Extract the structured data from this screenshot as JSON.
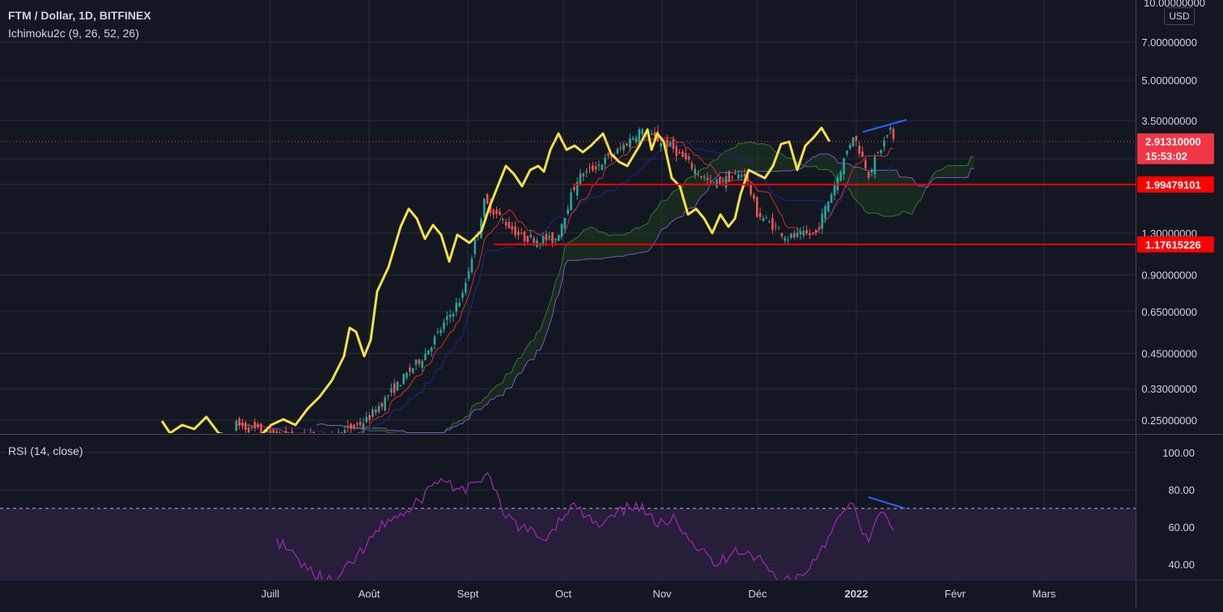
{
  "header": {
    "symbol": "FTM / Dollar, 1D, BITFINEX",
    "indicator": "Ichimoku2c (9, 26, 52, 26)",
    "currency": "USD"
  },
  "rsi_panel": {
    "label": "RSI (14, close)"
  },
  "price_tags": {
    "current_price": "2.91310000",
    "countdown": "15:53:02",
    "level_upper": "1.99479101",
    "level_lower": "1.17615226",
    "top_partial": "10.00000000"
  },
  "colors": {
    "background": "#131722",
    "grid": "#2a2e39",
    "up_candle": "#26a69a",
    "down_candle": "#ef5350",
    "overlay_line": "#f5e142",
    "level_line": "#ff0000",
    "tenkan": "#d32f2f",
    "kijun": "#1a237e",
    "cloud": "#1e3b1e",
    "span_b": "#7e57c2",
    "rsi_line": "#9c27b0",
    "rsi_band": "#2a1f3d",
    "divergence": "#2962ff",
    "price_tag_bg": "#f23645"
  },
  "chart_data": [
    {
      "type": "candlestick",
      "title": "FTM / Dollar, 1D, BITFINEX",
      "scale": "log",
      "ylim": [
        0.22,
        10
      ],
      "y_ticks": [
        "7.00000000",
        "5.00000000",
        "3.50000000",
        "1.30000000",
        "0.90000000",
        "0.65000000",
        "0.45000000",
        "0.33000000",
        "0.25000000"
      ],
      "x_ticks": [
        "Juill",
        "Août",
        "Sept",
        "Oct",
        "Nov",
        "Déc",
        "2022",
        "Févr",
        "Mars"
      ],
      "date_range": [
        "2021-06-20",
        "2022-01-18"
      ],
      "approx_close_path": [
        {
          "date": "2021-06-20",
          "close": 0.24
        },
        {
          "date": "2021-07-01",
          "close": 0.22
        },
        {
          "date": "2021-07-20",
          "close": 0.21
        },
        {
          "date": "2021-08-01",
          "close": 0.25
        },
        {
          "date": "2021-08-20",
          "close": 0.45
        },
        {
          "date": "2021-09-01",
          "close": 0.75
        },
        {
          "date": "2021-09-08",
          "close": 1.7
        },
        {
          "date": "2021-09-20",
          "close": 1.25
        },
        {
          "date": "2021-10-01",
          "close": 1.22
        },
        {
          "date": "2021-10-08",
          "close": 2.1
        },
        {
          "date": "2021-10-20",
          "close": 2.6
        },
        {
          "date": "2021-10-28",
          "close": 3.2
        },
        {
          "date": "2021-11-07",
          "close": 2.8
        },
        {
          "date": "2021-11-20",
          "close": 2.0
        },
        {
          "date": "2021-12-01",
          "close": 2.2
        },
        {
          "date": "2021-12-05",
          "close": 1.55
        },
        {
          "date": "2021-12-15",
          "close": 1.25
        },
        {
          "date": "2021-12-24",
          "close": 1.3
        },
        {
          "date": "2022-01-01",
          "close": 2.3
        },
        {
          "date": "2022-01-05",
          "close": 3.1
        },
        {
          "date": "2022-01-10",
          "close": 2.2
        },
        {
          "date": "2022-01-17",
          "close": 3.25
        },
        {
          "date": "2022-01-18",
          "close": 2.9131
        }
      ],
      "current_price": 2.9131,
      "horizontal_levels": [
        1.99479101,
        1.17615226
      ]
    },
    {
      "type": "line",
      "title": "RSI (14, close)",
      "ylim": [
        30,
        100
      ],
      "y_ticks": [
        "100.00",
        "80.00",
        "60.00",
        "40.00"
      ],
      "bands": [
        60,
        70
      ],
      "series": [
        {
          "name": "RSI (14, close)",
          "points": [
            {
              "date": "2021-07-03",
              "value": 54
            },
            {
              "date": "2021-07-06",
              "value": 48
            },
            {
              "date": "2021-07-10",
              "value": 43
            },
            {
              "date": "2021-07-15",
              "value": 34
            },
            {
              "date": "2021-07-22",
              "value": 30
            },
            {
              "date": "2021-08-01",
              "value": 50
            },
            {
              "date": "2021-08-08",
              "value": 64
            },
            {
              "date": "2021-08-15",
              "value": 68
            },
            {
              "date": "2021-08-22",
              "value": 82
            },
            {
              "date": "2021-08-25",
              "value": 86
            },
            {
              "date": "2021-09-02",
              "value": 78
            },
            {
              "date": "2021-09-05",
              "value": 84
            },
            {
              "date": "2021-09-09",
              "value": 89
            },
            {
              "date": "2021-09-14",
              "value": 67
            },
            {
              "date": "2021-09-20",
              "value": 60
            },
            {
              "date": "2021-09-27",
              "value": 53
            },
            {
              "date": "2021-10-06",
              "value": 72
            },
            {
              "date": "2021-10-15",
              "value": 60
            },
            {
              "date": "2021-10-27",
              "value": 73
            },
            {
              "date": "2021-11-03",
              "value": 60
            },
            {
              "date": "2021-11-08",
              "value": 67
            },
            {
              "date": "2021-11-14",
              "value": 52
            },
            {
              "date": "2021-11-22",
              "value": 39
            },
            {
              "date": "2021-11-28",
              "value": 49
            },
            {
              "date": "2021-12-05",
              "value": 44
            },
            {
              "date": "2021-12-12",
              "value": 31
            },
            {
              "date": "2021-12-20",
              "value": 34
            },
            {
              "date": "2021-12-28",
              "value": 55
            },
            {
              "date": "2022-01-04",
              "value": 73
            },
            {
              "date": "2022-01-10",
              "value": 52
            },
            {
              "date": "2022-01-14",
              "value": 68
            },
            {
              "date": "2022-01-18",
              "value": 58
            }
          ]
        }
      ]
    }
  ]
}
